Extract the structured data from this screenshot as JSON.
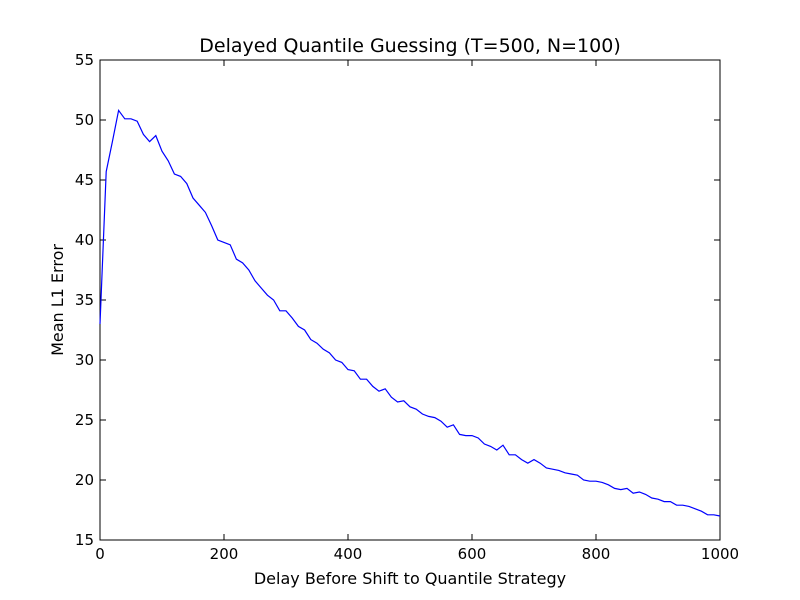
{
  "chart_data": {
    "type": "line",
    "title": "Delayed Quantile Guessing (T=500, N=100)",
    "xlabel": "Delay Before Shift to Quantile Strategy",
    "ylabel": "Mean L1 Error",
    "xlim": [
      0,
      1000
    ],
    "ylim": [
      15,
      55
    ],
    "xticks": [
      0,
      200,
      400,
      600,
      800,
      1000
    ],
    "yticks": [
      15,
      20,
      25,
      30,
      35,
      40,
      45,
      50,
      55
    ],
    "xtick_labels": [
      "0",
      "200",
      "400",
      "600",
      "800",
      "1000"
    ],
    "ytick_labels": [
      "15",
      "20",
      "25",
      "30",
      "35",
      "40",
      "45",
      "50",
      "55"
    ],
    "grid": false,
    "line_color": "#0000ff",
    "series": [
      {
        "x": [
          0,
          10,
          20,
          30,
          40,
          50,
          60,
          70,
          80,
          90,
          100,
          110,
          120,
          130,
          140,
          150,
          160,
          170,
          180,
          190,
          200,
          210,
          220,
          230,
          240,
          250,
          260,
          270,
          280,
          290,
          300,
          310,
          320,
          330,
          340,
          350,
          360,
          370,
          380,
          390,
          400,
          410,
          420,
          430,
          440,
          450,
          460,
          470,
          480,
          490,
          500,
          510,
          520,
          530,
          540,
          550,
          560,
          570,
          580,
          590,
          600,
          610,
          620,
          630,
          640,
          650,
          660,
          670,
          680,
          690,
          700,
          710,
          720,
          730,
          740,
          750,
          760,
          770,
          780,
          790,
          800,
          810,
          820,
          830,
          840,
          850,
          860,
          870,
          880,
          890,
          900,
          910,
          920,
          930,
          940,
          950,
          960,
          970,
          980,
          990,
          1000
        ],
        "y": [
          33.0,
          45.7,
          48.2,
          50.8,
          50.1,
          50.1,
          49.9,
          48.8,
          48.2,
          48.7,
          47.4,
          46.6,
          45.5,
          45.3,
          44.7,
          43.5,
          42.9,
          42.3,
          41.2,
          40.0,
          39.8,
          39.6,
          38.4,
          38.1,
          37.5,
          36.6,
          36.0,
          35.4,
          35.0,
          34.1,
          34.1,
          33.5,
          32.8,
          32.5,
          31.7,
          31.4,
          30.9,
          30.6,
          30.0,
          29.8,
          29.2,
          29.1,
          28.4,
          28.4,
          27.8,
          27.4,
          27.6,
          26.9,
          26.5,
          26.6,
          26.1,
          25.9,
          25.5,
          25.3,
          25.2,
          24.9,
          24.4,
          24.6,
          23.8,
          23.7,
          23.7,
          23.5,
          23.0,
          22.8,
          22.5,
          22.9,
          22.1,
          22.1,
          21.7,
          21.4,
          21.7,
          21.4,
          21.0,
          20.9,
          20.8,
          20.6,
          20.5,
          20.4,
          20.0,
          19.9,
          19.9,
          19.8,
          19.6,
          19.3,
          19.2,
          19.3,
          18.9,
          19.0,
          18.8,
          18.5,
          18.4,
          18.2,
          18.2,
          17.9,
          17.9,
          17.8,
          17.6,
          17.4,
          17.1,
          17.1,
          17.0
        ]
      }
    ]
  }
}
